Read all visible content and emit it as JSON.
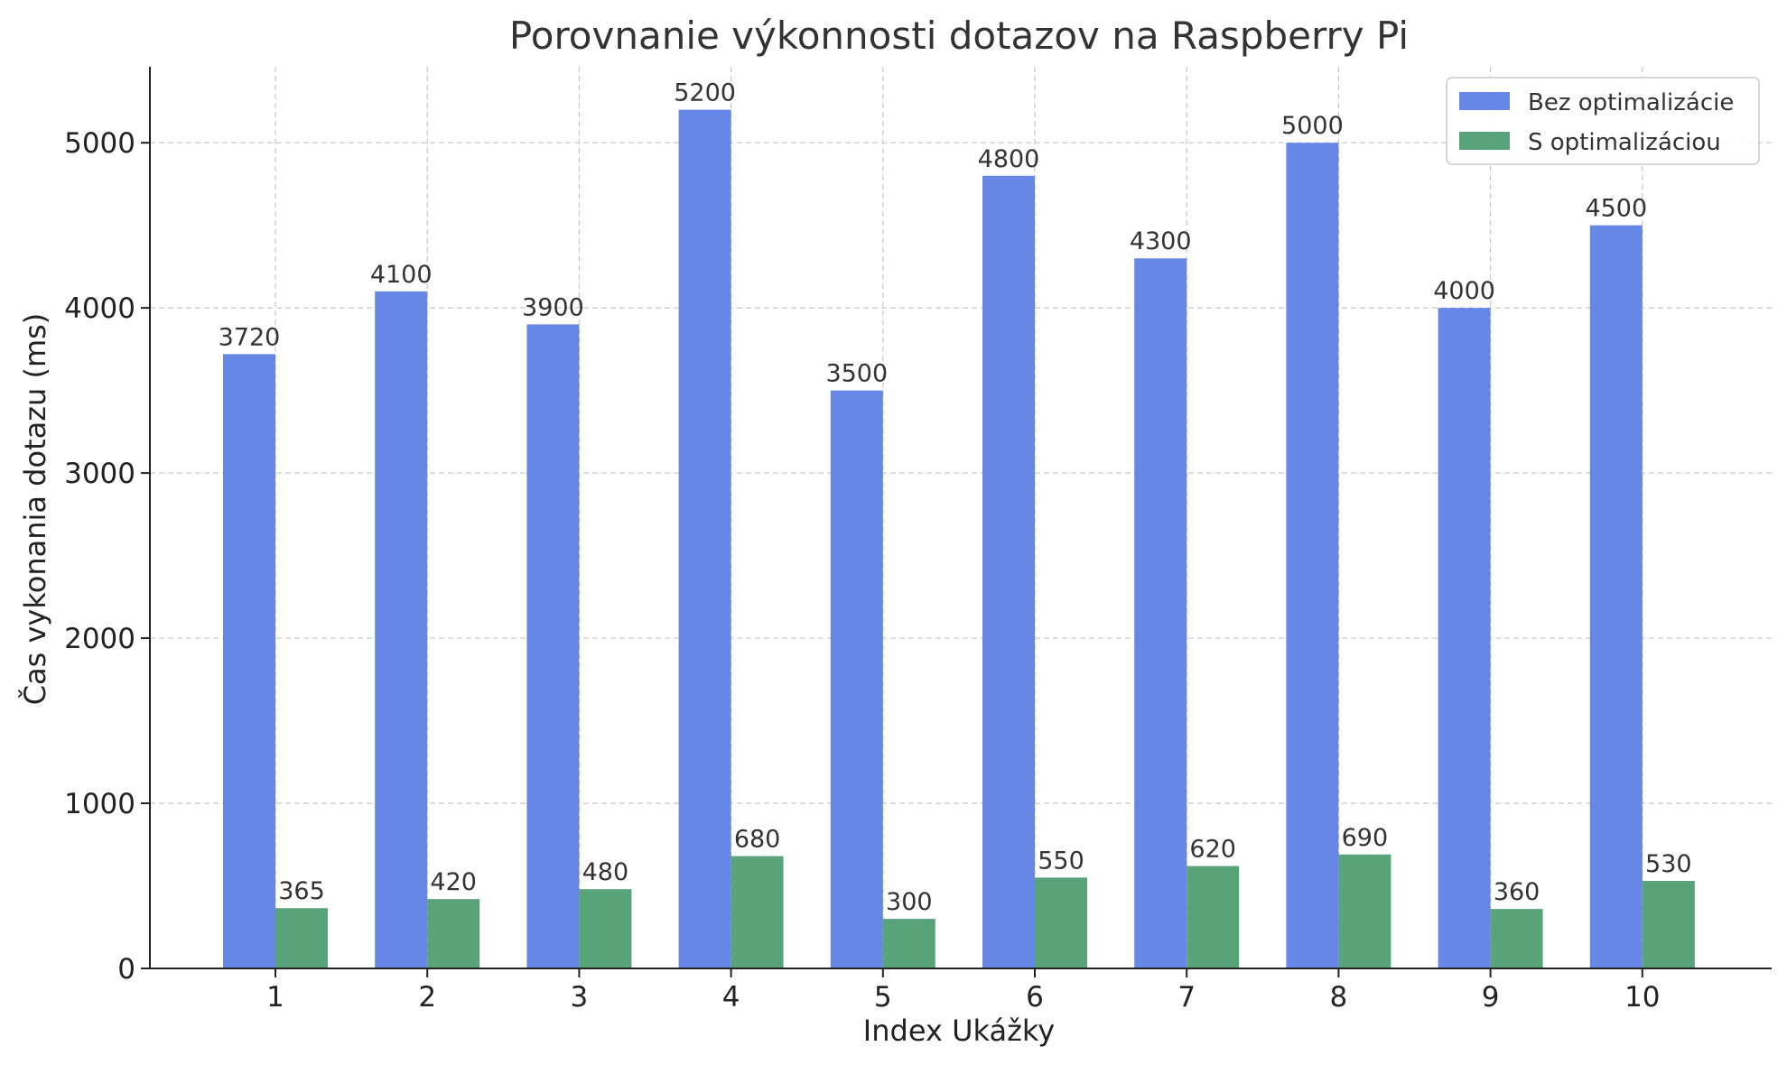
{
  "chart_data": {
    "type": "bar",
    "title": "Porovnanie výkonnosti dotazov na Raspberry Pi",
    "xlabel": "Index Ukážky",
    "ylabel": "Čas vykonania dotazu (ms)",
    "categories": [
      "1",
      "2",
      "3",
      "4",
      "5",
      "6",
      "7",
      "8",
      "9",
      "10"
    ],
    "series": [
      {
        "name": "Bez optimalizácie",
        "color": "#6787e6",
        "values": [
          3720,
          4100,
          3900,
          5200,
          3500,
          4800,
          4300,
          5000,
          4000,
          4500
        ]
      },
      {
        "name": "S optimalizáciou",
        "color": "#59a37a",
        "values": [
          365,
          420,
          480,
          680,
          300,
          550,
          620,
          690,
          360,
          530
        ]
      }
    ],
    "yticks": [
      0,
      1000,
      2000,
      3000,
      4000,
      5000
    ],
    "ylim": [
      0,
      5460
    ],
    "grid": true,
    "legend_position": "top-right"
  }
}
